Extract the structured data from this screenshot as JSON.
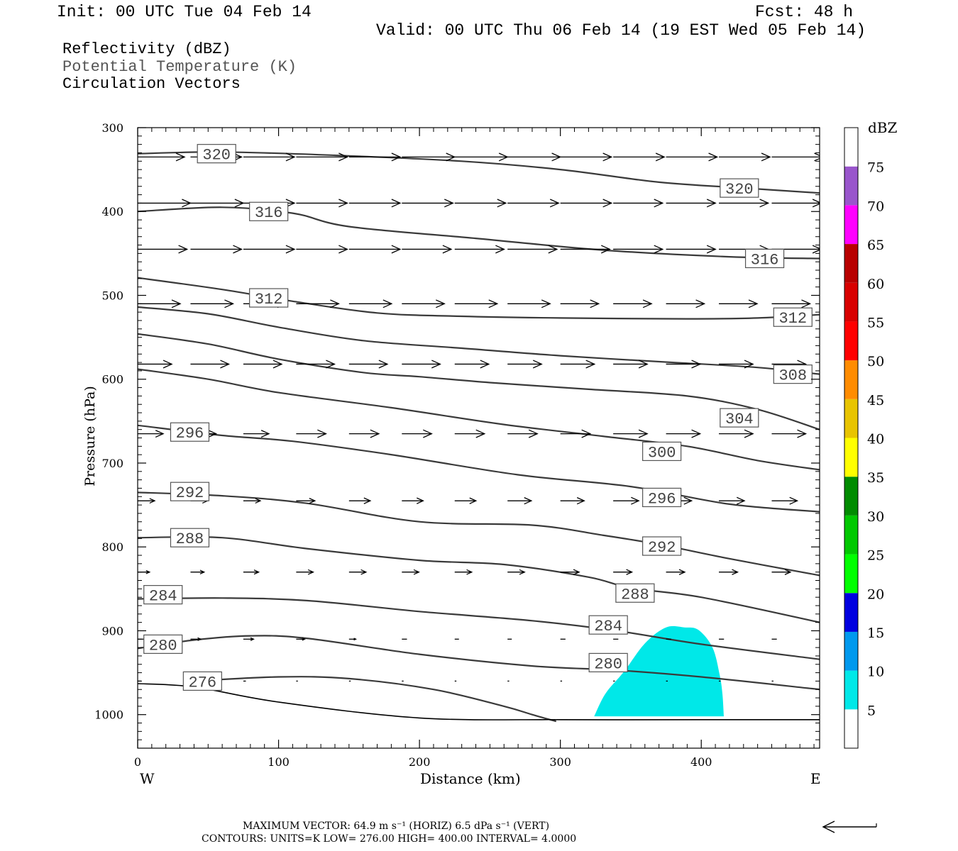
{
  "header": {
    "init": "Init: 00 UTC Tue 04 Feb 14",
    "fcst": "Fcst:   48 h",
    "valid": "Valid: 00 UTC Thu 06 Feb 14 (19 EST Wed 05 Feb 14)"
  },
  "legend": {
    "line1": "Reflectivity (dBZ)",
    "line2": "Potential Temperature (K)",
    "line3": "Circulation Vectors"
  },
  "axes": {
    "xlabel": "Distance (km)",
    "ylabel": "Pressure (hPa)",
    "west": "W",
    "east": "E"
  },
  "footer": {
    "max_vector": "MAXIMUM VECTOR:  64.9 m s⁻¹ (HORIZ)        6.5 dPa s⁻¹ (VERT)",
    "contours": "CONTOURS:  UNITS=K  LOW=  276.00       HIGH=  400.00       INTERVAL=    4.0000"
  },
  "colorbar": {
    "unit": "dBZ",
    "colors": [
      "#ffffff",
      "#00e8e8",
      "#0099ee",
      "#0000e0",
      "#00ff00",
      "#00c800",
      "#008c00",
      "#ffff00",
      "#e8c400",
      "#ff8c00",
      "#ff0000",
      "#d80000",
      "#b80000",
      "#ff00ff",
      "#9955cc",
      "#ffffff"
    ],
    "labels": [
      "5",
      "10",
      "15",
      "20",
      "25",
      "30",
      "35",
      "40",
      "45",
      "50",
      "55",
      "60",
      "65",
      "70",
      "75"
    ]
  },
  "chart_data": {
    "type": "cross-section",
    "xlabel": "Distance (km)",
    "ylabel": "Pressure (hPa)",
    "xlim": [
      0,
      484
    ],
    "ylim": [
      300,
      1040
    ],
    "y_scale": "linear (inverted, pressure increases downward)",
    "x_ticks": [
      0,
      100,
      200,
      300,
      400
    ],
    "y_ticks": [
      300,
      400,
      500,
      600,
      700,
      800,
      900,
      1000
    ],
    "theta_contours": [
      {
        "value": 320,
        "points": [
          [
            0,
            331
          ],
          [
            60,
            329
          ],
          [
            140,
            333
          ],
          [
            230,
            340
          ],
          [
            300,
            350
          ],
          [
            370,
            365
          ],
          [
            430,
            372
          ],
          [
            484,
            378
          ]
        ],
        "labels": [
          [
            56,
            331
          ],
          [
            427,
            372
          ]
        ]
      },
      {
        "value": 316,
        "points": [
          [
            0,
            400
          ],
          [
            60,
            395
          ],
          [
            110,
            402
          ],
          [
            150,
            418
          ],
          [
            240,
            432
          ],
          [
            330,
            446
          ],
          [
            420,
            454
          ],
          [
            484,
            456
          ]
        ],
        "labels": [
          [
            93,
            400
          ],
          [
            445,
            456
          ]
        ]
      },
      {
        "value": 312,
        "points": [
          [
            0,
            479
          ],
          [
            60,
            493
          ],
          [
            110,
            507
          ],
          [
            170,
            521
          ],
          [
            230,
            525
          ],
          [
            300,
            527
          ],
          [
            390,
            528
          ],
          [
            440,
            527
          ],
          [
            484,
            523
          ]
        ],
        "labels": [
          [
            93,
            503
          ],
          [
            465,
            526
          ]
        ]
      },
      {
        "value": 308,
        "points": [
          [
            0,
            514
          ],
          [
            50,
            522
          ],
          [
            100,
            538
          ],
          [
            160,
            554
          ],
          [
            230,
            563
          ],
          [
            300,
            572
          ],
          [
            380,
            580
          ],
          [
            440,
            586
          ],
          [
            484,
            594
          ]
        ],
        "labels": [
          [
            465,
            594
          ]
        ]
      },
      {
        "value": 304,
        "points": [
          [
            0,
            546
          ],
          [
            50,
            558
          ],
          [
            100,
            576
          ],
          [
            160,
            592
          ],
          [
            200,
            597
          ],
          [
            250,
            604
          ],
          [
            320,
            612
          ],
          [
            390,
            620
          ],
          [
            440,
            636
          ],
          [
            484,
            660
          ]
        ],
        "labels": [
          [
            427,
            646
          ]
        ]
      },
      {
        "value": 300,
        "points": [
          [
            0,
            588
          ],
          [
            50,
            600
          ],
          [
            100,
            616
          ],
          [
            180,
            634
          ],
          [
            260,
            654
          ],
          [
            330,
            668
          ],
          [
            390,
            680
          ],
          [
            440,
            697
          ],
          [
            484,
            708
          ]
        ],
        "labels": [
          [
            372,
            686
          ]
        ]
      },
      {
        "value": 296,
        "points": [
          [
            0,
            655
          ],
          [
            60,
            667
          ],
          [
            110,
            674
          ],
          [
            180,
            690
          ],
          [
            270,
            714
          ],
          [
            350,
            728
          ],
          [
            420,
            749
          ],
          [
            484,
            758
          ]
        ],
        "labels": [
          [
            37,
            663
          ],
          [
            372,
            741
          ]
        ]
      },
      {
        "value": 292,
        "points": [
          [
            0,
            735
          ],
          [
            60,
            739
          ],
          [
            120,
            748
          ],
          [
            200,
            770
          ],
          [
            280,
            774
          ],
          [
            330,
            786
          ],
          [
            370,
            797
          ],
          [
            420,
            814
          ],
          [
            484,
            834
          ]
        ],
        "labels": [
          [
            37,
            734
          ],
          [
            372,
            799
          ]
        ]
      },
      {
        "value": 288,
        "points": [
          [
            0,
            789
          ],
          [
            60,
            789
          ],
          [
            120,
            802
          ],
          [
            200,
            816
          ],
          [
            260,
            821
          ],
          [
            320,
            836
          ],
          [
            350,
            849
          ],
          [
            400,
            860
          ],
          [
            484,
            890
          ]
        ],
        "labels": [
          [
            37,
            789
          ],
          [
            353,
            855
          ]
        ]
      },
      {
        "value": 284,
        "points": [
          [
            0,
            862
          ],
          [
            60,
            861
          ],
          [
            120,
            864
          ],
          [
            200,
            877
          ],
          [
            280,
            888
          ],
          [
            340,
            900
          ],
          [
            400,
            916
          ],
          [
            484,
            934
          ]
        ],
        "labels": [
          [
            18,
            857
          ],
          [
            334,
            893
          ]
        ]
      },
      {
        "value": 280,
        "points": [
          [
            0,
            921
          ],
          [
            40,
            911
          ],
          [
            80,
            906
          ],
          [
            120,
            909
          ],
          [
            200,
            928
          ],
          [
            280,
            942
          ],
          [
            340,
            947
          ],
          [
            400,
            955
          ],
          [
            484,
            970
          ]
        ],
        "labels": [
          [
            18,
            916
          ],
          [
            334,
            938
          ]
        ]
      },
      {
        "value": 276,
        "points": [
          [
            40,
            960
          ],
          [
            100,
            955
          ],
          [
            150,
            957
          ],
          [
            210,
            970
          ],
          [
            260,
            990
          ],
          [
            280,
            1000
          ],
          [
            297,
            1008
          ]
        ],
        "labels": [
          [
            46,
            960
          ]
        ]
      },
      {
        "value": "terrain/surface",
        "points": [
          [
            0,
            963
          ],
          [
            40,
            967
          ],
          [
            100,
            985
          ],
          [
            200,
            1004
          ],
          [
            300,
            1006
          ],
          [
            400,
            1006
          ],
          [
            484,
            1006
          ]
        ],
        "labels": []
      }
    ],
    "reflectivity_regions": [
      {
        "dbz_range": "5-10",
        "color": "#00e8e8",
        "points": [
          [
            324,
            1002
          ],
          [
            332,
            975
          ],
          [
            345,
            949
          ],
          [
            360,
            915
          ],
          [
            375,
            896
          ],
          [
            388,
            896
          ],
          [
            398,
            899
          ],
          [
            408,
            920
          ],
          [
            413,
            952
          ],
          [
            415,
            975
          ],
          [
            416,
            1002
          ]
        ]
      }
    ],
    "vector_rows": [
      {
        "p": 335,
        "u": [
          0.55,
          0.6,
          0.6,
          0.6,
          0.6,
          0.62,
          0.62,
          0.62,
          0.6,
          0.6,
          0.6,
          0.6,
          0.6
        ]
      },
      {
        "p": 390,
        "u": [
          0.62,
          0.62,
          0.6,
          0.6,
          0.6,
          0.6,
          0.6,
          0.6,
          0.6,
          0.58,
          0.58,
          0.58,
          0.58
        ]
      },
      {
        "p": 445,
        "u": [
          0.58,
          0.6,
          0.6,
          0.6,
          0.6,
          0.58,
          0.58,
          0.58,
          0.58,
          0.58,
          0.58,
          0.58,
          0.58
        ]
      },
      {
        "p": 510,
        "u": [
          0.5,
          0.5,
          0.5,
          0.5,
          0.5,
          0.5,
          0.5,
          0.5,
          0.45,
          0.45,
          0.45,
          0.45,
          0.45
        ]
      },
      {
        "p": 582,
        "u": [
          0.4,
          0.45,
          0.45,
          0.45,
          0.45,
          0.45,
          0.4,
          0.4,
          0.4,
          0.4,
          0.4,
          0.4,
          0.4
        ]
      },
      {
        "p": 665,
        "u": [
          0.3,
          0.3,
          0.3,
          0.35,
          0.35,
          0.35,
          0.35,
          0.35,
          0.35,
          0.4,
          0.4,
          0.4,
          0.4
        ]
      },
      {
        "p": 745,
        "u": [
          0.2,
          0.2,
          0.2,
          0.22,
          0.25,
          0.25,
          0.25,
          0.28,
          0.28,
          0.3,
          0.3,
          0.3,
          0.3
        ]
      },
      {
        "p": 830,
        "u": [
          0.14,
          0.16,
          0.18,
          0.2,
          0.2,
          0.2,
          0.2,
          0.2,
          0.22,
          0.22,
          0.22,
          0.22,
          0.22
        ]
      },
      {
        "p": 910,
        "u": [
          0.12,
          0.12,
          0.12,
          0.1,
          0.08,
          0.06,
          0.05,
          0.05,
          0.06,
          0.06,
          0.06,
          0.06,
          0.06
        ]
      },
      {
        "p": 960,
        "u": [
          0.04,
          0.03,
          0.03,
          0.02,
          0.02,
          0.02,
          0.02,
          0.02,
          0.02,
          0.02,
          0.02,
          0.02,
          0.02
        ]
      }
    ]
  }
}
